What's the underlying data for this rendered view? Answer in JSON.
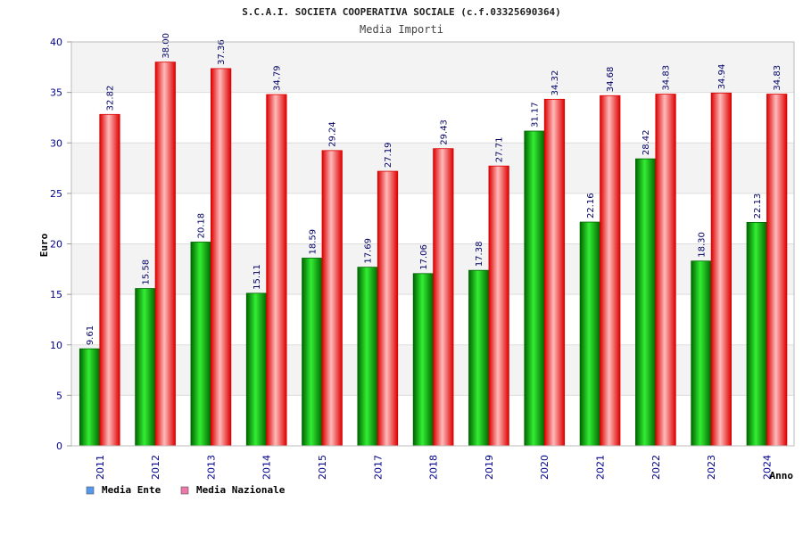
{
  "colors": {
    "ente_dark": "#006600",
    "ente_light": "#33ee33",
    "naz_dark": "#dd0000",
    "naz_light": "#ffbbbb",
    "legend_ente": "#5599ee",
    "legend_naz": "#ee77aa",
    "band": "#f3f3f3",
    "grid": "#dddddd"
  },
  "chart_data": {
    "type": "bar",
    "title": "S.C.A.I. SOCIETA COOPERATIVA SOCIALE (c.f.03325690364)",
    "subtitle": "Media Importi",
    "xlabel": "Anno",
    "ylabel": "Euro",
    "ylim": [
      0,
      40
    ],
    "yticks": [
      0,
      5,
      10,
      15,
      20,
      25,
      30,
      35,
      40
    ],
    "categories": [
      "2011",
      "2012",
      "2013",
      "2014",
      "2015",
      "2017",
      "2018",
      "2019",
      "2020",
      "2021",
      "2022",
      "2023",
      "2024"
    ],
    "series": [
      {
        "name": "Media Ente",
        "values": [
          9.61,
          15.58,
          20.18,
          15.11,
          18.59,
          17.69,
          17.06,
          17.38,
          31.17,
          22.16,
          28.42,
          18.3,
          22.13
        ],
        "labels": [
          "9.61",
          "15.58",
          "20.18",
          "15.11",
          "18.59",
          "17.69",
          "17.06",
          "17.38",
          "31.17",
          "22.16",
          "28.42",
          "18.30",
          "22.13"
        ]
      },
      {
        "name": "Media Nazionale",
        "values": [
          32.82,
          38.0,
          37.36,
          34.79,
          29.24,
          27.19,
          29.43,
          27.71,
          34.32,
          34.68,
          34.83,
          34.94,
          34.83
        ],
        "labels": [
          "32.82",
          "38.00",
          "37.36",
          "34.79",
          "29.24",
          "27.19",
          "29.43",
          "27.71",
          "34.32",
          "34.68",
          "34.83",
          "34.94",
          "34.83"
        ]
      }
    ],
    "legend_position": "bottom-left"
  }
}
